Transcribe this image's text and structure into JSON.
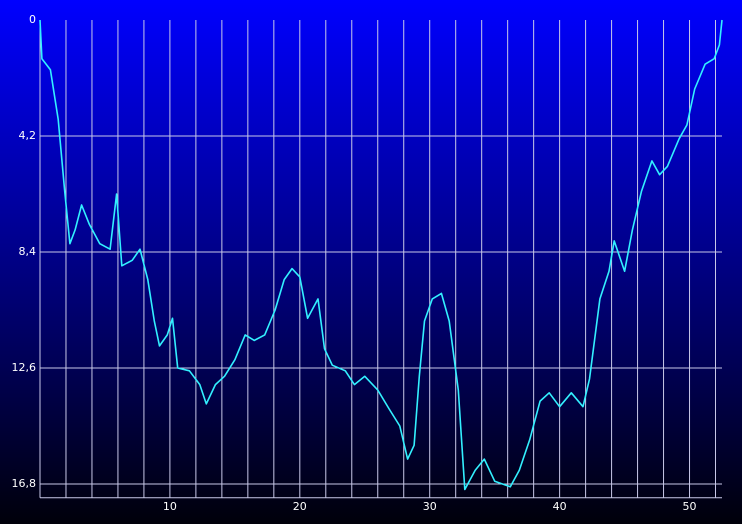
{
  "chart_data": {
    "type": "line",
    "x": [
      0,
      0.15,
      0.8,
      1.4,
      1.9,
      2.3,
      2.7,
      3.2,
      3.8,
      4.6,
      5.4,
      5.9,
      6.3,
      7.1,
      7.7,
      8.3,
      8.8,
      9.2,
      9.8,
      10.2,
      10.6,
      11.5,
      12.3,
      12.8,
      13.5,
      14.2,
      15,
      15.8,
      16.5,
      17.3,
      18.1,
      18.8,
      19.4,
      20,
      20.6,
      21.4,
      21.9,
      22.5,
      23.5,
      24.2,
      25,
      26,
      26.9,
      27.7,
      28.3,
      28.8,
      29.2,
      29.6,
      30.2,
      30.9,
      31.5,
      32.2,
      32.7,
      33.5,
      34.2,
      35,
      36.2,
      36.9,
      37.7,
      38.5,
      39.2,
      40,
      40.9,
      41.8,
      42.3,
      43.1,
      43.8,
      44.2,
      45,
      45.6,
      46.3,
      47.1,
      47.7,
      48.3,
      49.2,
      49.8,
      50.4,
      51.2,
      51.9,
      52.3,
      52.5
    ],
    "series": [
      {
        "color": "#33f0ff",
        "values": [
          0,
          1.4,
          1.8,
          3.6,
          6.2,
          8.1,
          7.6,
          6.7,
          7.4,
          8.1,
          8.3,
          6.3,
          8.9,
          8.7,
          8.3,
          9.4,
          10.9,
          11.8,
          11.4,
          10.8,
          12.6,
          12.7,
          13.2,
          13.9,
          13.2,
          12.9,
          12.3,
          11.4,
          11.6,
          11.4,
          10.5,
          9.4,
          9.0,
          9.3,
          10.8,
          10.1,
          11.9,
          12.5,
          12.7,
          13.2,
          12.9,
          13.4,
          14.1,
          14.7,
          15.9,
          15.4,
          12.9,
          10.9,
          10.1,
          9.9,
          10.9,
          13.4,
          17.0,
          16.3,
          15.9,
          16.7,
          16.9,
          16.3,
          15.2,
          13.8,
          13.5,
          14.0,
          13.5,
          14.0,
          13.0,
          10.1,
          9.1,
          8.0,
          9.1,
          7.6,
          6.2,
          5.1,
          5.6,
          5.3,
          4.3,
          3.8,
          2.5,
          1.6,
          1.4,
          0.9,
          0
        ]
      }
    ],
    "xlim": [
      0,
      52.5
    ],
    "xticks": [
      10,
      20,
      30,
      40,
      50
    ],
    "x_grid_step": 2,
    "ylim": [
      0,
      17.3
    ],
    "y_inverted": true,
    "yticks": [
      0,
      {
        "value": 4.2,
        "label": "4,2"
      },
      {
        "value": 8.4,
        "label": "8,4"
      },
      {
        "value": 12.6,
        "label": "12,6"
      },
      {
        "value": 16.8,
        "label": "16,8"
      }
    ],
    "grid": true
  }
}
